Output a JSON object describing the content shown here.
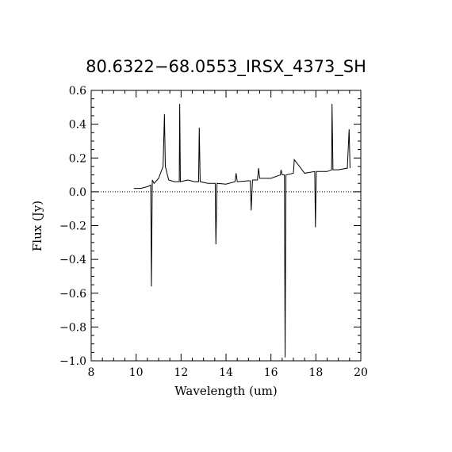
{
  "chart_data": {
    "type": "line",
    "title": "80.6322−68.0553_IRSX_4373_SH",
    "xlabel": "Wavelength (um)",
    "ylabel": "Flux (Jy)",
    "xlim": [
      8,
      20
    ],
    "ylim": [
      -1.0,
      0.6
    ],
    "x_ticks": [
      8,
      10,
      12,
      14,
      16,
      18,
      20
    ],
    "x_tick_labels": [
      "8",
      "10",
      "12",
      "14",
      "16",
      "18",
      "20"
    ],
    "y_ticks": [
      -1.0,
      -0.8,
      -0.6,
      -0.4,
      -0.2,
      0.0,
      0.2,
      0.4,
      0.6
    ],
    "y_tick_labels": [
      "−1.0",
      "−0.8",
      "−0.6",
      "−0.4",
      "−0.2",
      "0.0",
      "0.2",
      "0.4",
      "0.6"
    ],
    "zero_line": {
      "y": 0.0,
      "style": "dotted"
    },
    "grid": false,
    "legend": "none",
    "series": [
      {
        "color": "#000000",
        "x": [
          9.9,
          10.2,
          10.5,
          10.65,
          10.68,
          10.72,
          10.8,
          11.0,
          11.2,
          11.26,
          11.3,
          11.45,
          11.7,
          11.92,
          11.94,
          11.97,
          12.3,
          12.6,
          12.78,
          12.81,
          12.85,
          13.2,
          13.52,
          13.55,
          13.6,
          14.0,
          14.4,
          14.45,
          14.5,
          15.0,
          15.08,
          15.12,
          15.18,
          15.4,
          15.45,
          15.5,
          16.0,
          16.42,
          16.45,
          16.5,
          16.6,
          16.63,
          16.67,
          17.0,
          17.04,
          17.5,
          17.95,
          17.98,
          18.02,
          18.5,
          18.7,
          18.72,
          18.76,
          19.0,
          19.4,
          19.48,
          19.52
        ],
        "y": [
          0.02,
          0.02,
          0.03,
          0.04,
          -0.56,
          0.07,
          0.05,
          0.08,
          0.15,
          0.46,
          0.15,
          0.07,
          0.06,
          0.06,
          0.52,
          0.06,
          0.07,
          0.06,
          0.06,
          0.38,
          0.06,
          0.05,
          0.05,
          -0.31,
          0.05,
          0.045,
          0.06,
          0.11,
          0.06,
          0.065,
          0.065,
          -0.11,
          0.07,
          0.07,
          0.14,
          0.08,
          0.08,
          0.1,
          0.13,
          0.1,
          0.1,
          -0.98,
          0.1,
          0.11,
          0.19,
          0.11,
          0.12,
          -0.21,
          0.12,
          0.12,
          0.13,
          0.52,
          0.13,
          0.13,
          0.14,
          0.37,
          0.14
        ]
      }
    ]
  }
}
